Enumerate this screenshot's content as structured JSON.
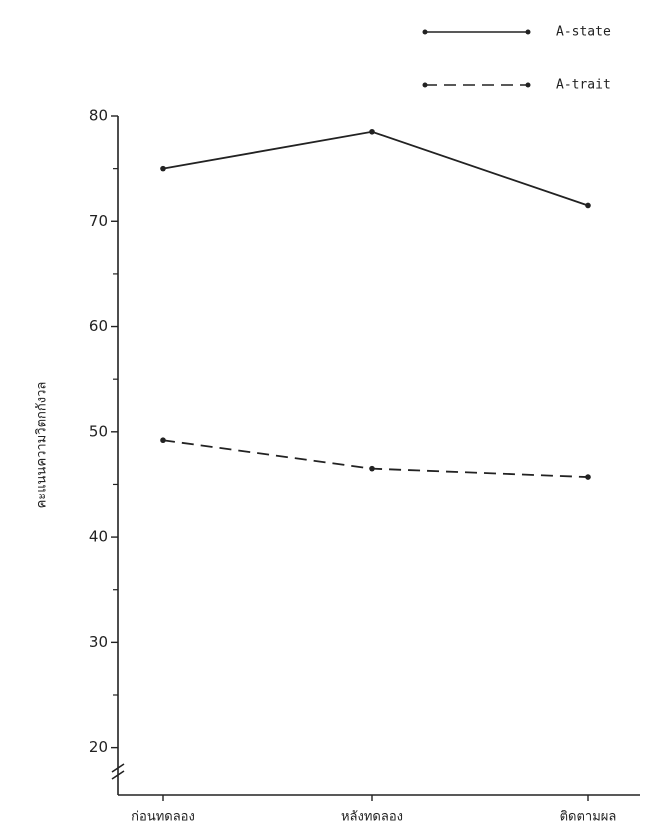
{
  "chart_data": {
    "type": "line",
    "y_label": "คะแนนความวิตกกังวล",
    "categories": [
      "ก่อนทดลอง",
      "หลังทดลอง",
      "ติดตามผล"
    ],
    "series": [
      {
        "name": "A-state",
        "color": "#222222",
        "line_style": "solid",
        "values": [
          75,
          78.5,
          71.5
        ]
      },
      {
        "name": "A-trait",
        "color": "#222222",
        "line_style": "dashed",
        "values": [
          49.2,
          46.5,
          45.7
        ]
      }
    ],
    "ylim": [
      15.5,
      80
    ],
    "yticks": [
      20,
      30,
      40,
      50,
      60,
      70,
      80
    ],
    "minor_yticks": [
      25,
      35,
      45,
      55,
      65,
      75
    ],
    "legend": "top-right"
  }
}
